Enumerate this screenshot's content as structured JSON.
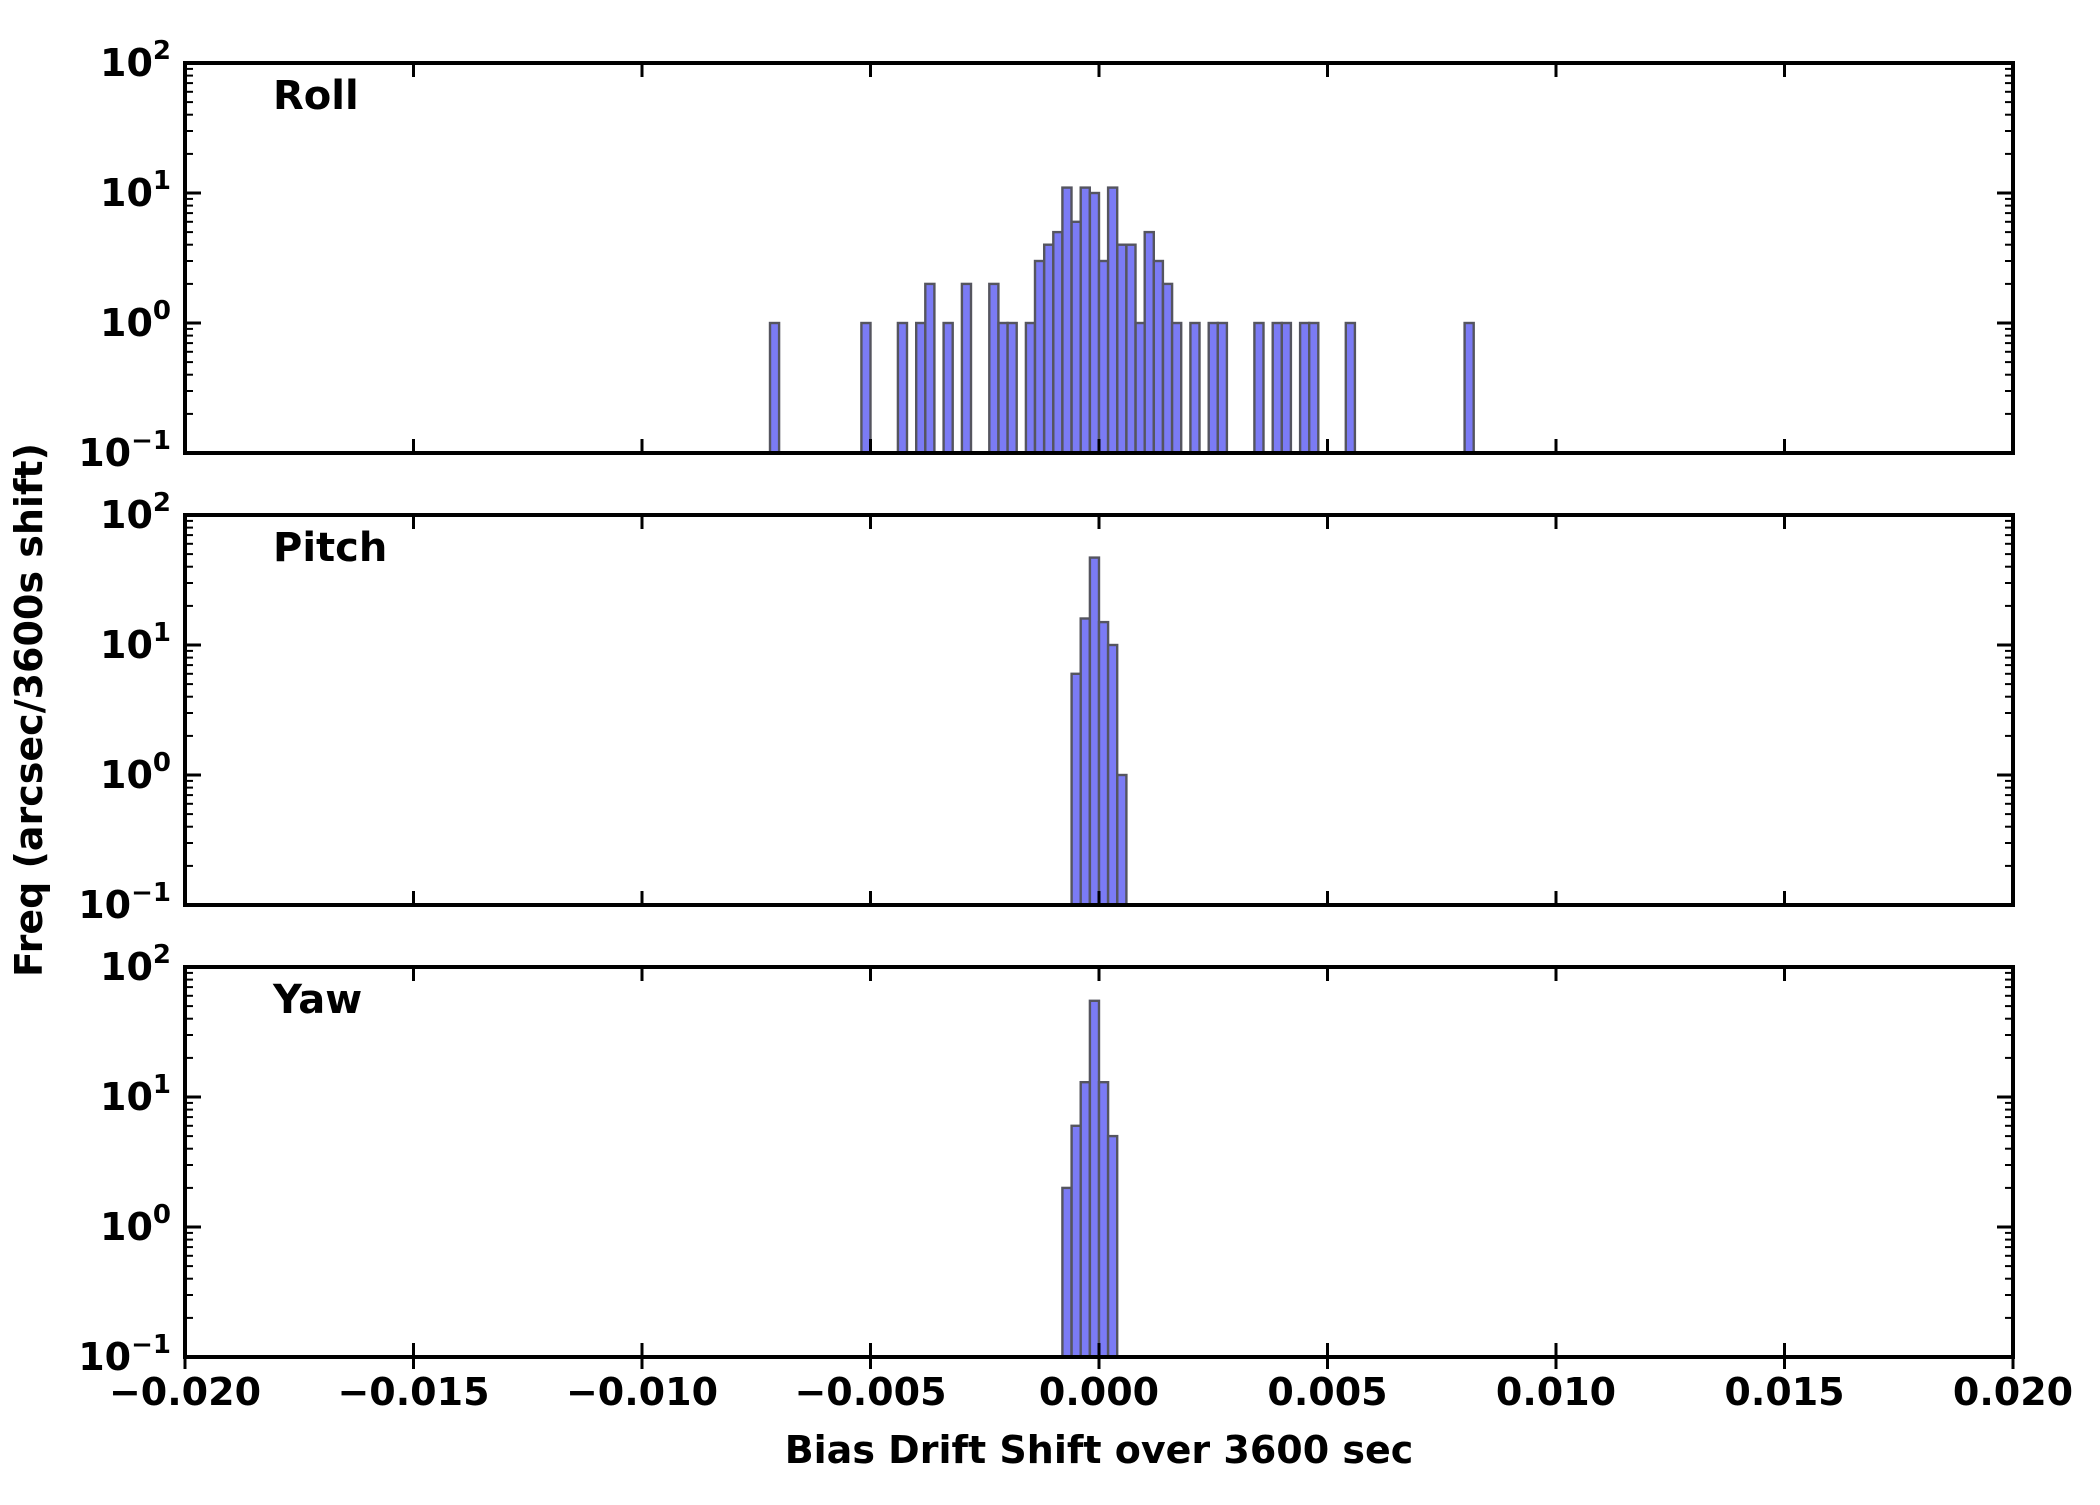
{
  "figure": {
    "background": "#ffffff",
    "bar_fill": "#7b7bf5",
    "bar_edge": "#55555f",
    "axis_color": "#000000",
    "xlabel": "Bias Drift Shift over 3600 sec",
    "ylabel": "Freq (arcsec/3600s shift)",
    "x_tick_values": [
      -0.02,
      -0.015,
      -0.01,
      -0.005,
      0.0,
      0.005,
      0.01,
      0.015,
      0.02
    ],
    "x_tick_labels": [
      "−0.020",
      "−0.015",
      "−0.010",
      "−0.005",
      "0.000",
      "0.005",
      "0.010",
      "0.015",
      "0.020"
    ],
    "y_tick_base": "10",
    "y_tick_exponents": [
      "2",
      "1",
      "0",
      "−1"
    ],
    "xlim": [
      -0.02,
      0.02
    ],
    "ylim": [
      0.1,
      100
    ],
    "yscale": "log",
    "grid": false,
    "legend": "none"
  },
  "chart_data": [
    {
      "type": "bar",
      "style": "histogram",
      "label": "Roll",
      "yscale": "log",
      "xlim": [
        -0.02,
        0.02
      ],
      "ylim": [
        0.1,
        100
      ],
      "bin_width": 0.0002,
      "bins": [
        [
          -0.0072,
          1
        ],
        [
          -0.0052,
          1
        ],
        [
          -0.0044,
          1
        ],
        [
          -0.004,
          1
        ],
        [
          -0.0038,
          2
        ],
        [
          -0.0034,
          1
        ],
        [
          -0.003,
          2
        ],
        [
          -0.0024,
          2
        ],
        [
          -0.0022,
          1
        ],
        [
          -0.002,
          1
        ],
        [
          -0.0016,
          1
        ],
        [
          -0.0014,
          3
        ],
        [
          -0.0012,
          4
        ],
        [
          -0.001,
          5
        ],
        [
          -0.0008,
          11
        ],
        [
          -0.0006,
          6
        ],
        [
          -0.0004,
          11
        ],
        [
          -0.0002,
          10
        ],
        [
          0.0,
          3
        ],
        [
          0.0002,
          11
        ],
        [
          0.0004,
          4
        ],
        [
          0.0006,
          4
        ],
        [
          0.0008,
          1
        ],
        [
          0.001,
          5
        ],
        [
          0.0012,
          3
        ],
        [
          0.0014,
          2
        ],
        [
          0.0016,
          1
        ],
        [
          0.002,
          1
        ],
        [
          0.0024,
          1
        ],
        [
          0.0026,
          1
        ],
        [
          0.0034,
          1
        ],
        [
          0.0038,
          1
        ],
        [
          0.004,
          1
        ],
        [
          0.0044,
          1
        ],
        [
          0.0046,
          1
        ],
        [
          0.0054,
          1
        ],
        [
          0.008,
          1
        ]
      ]
    },
    {
      "type": "bar",
      "style": "histogram",
      "label": "Pitch",
      "yscale": "log",
      "xlim": [
        -0.02,
        0.02
      ],
      "ylim": [
        0.1,
        100
      ],
      "bin_width": 0.0002,
      "bins": [
        [
          -0.0006,
          6
        ],
        [
          -0.0004,
          16
        ],
        [
          -0.0002,
          47
        ],
        [
          0.0,
          15
        ],
        [
          0.0002,
          10
        ],
        [
          0.0004,
          1
        ]
      ]
    },
    {
      "type": "bar",
      "style": "histogram",
      "label": "Yaw",
      "yscale": "log",
      "xlim": [
        -0.02,
        0.02
      ],
      "ylim": [
        0.1,
        100
      ],
      "bin_width": 0.0002,
      "bins": [
        [
          -0.0008,
          2
        ],
        [
          -0.0006,
          6
        ],
        [
          -0.0004,
          13
        ],
        [
          -0.0002,
          55
        ],
        [
          0.0,
          13
        ],
        [
          0.0002,
          5
        ]
      ]
    }
  ]
}
